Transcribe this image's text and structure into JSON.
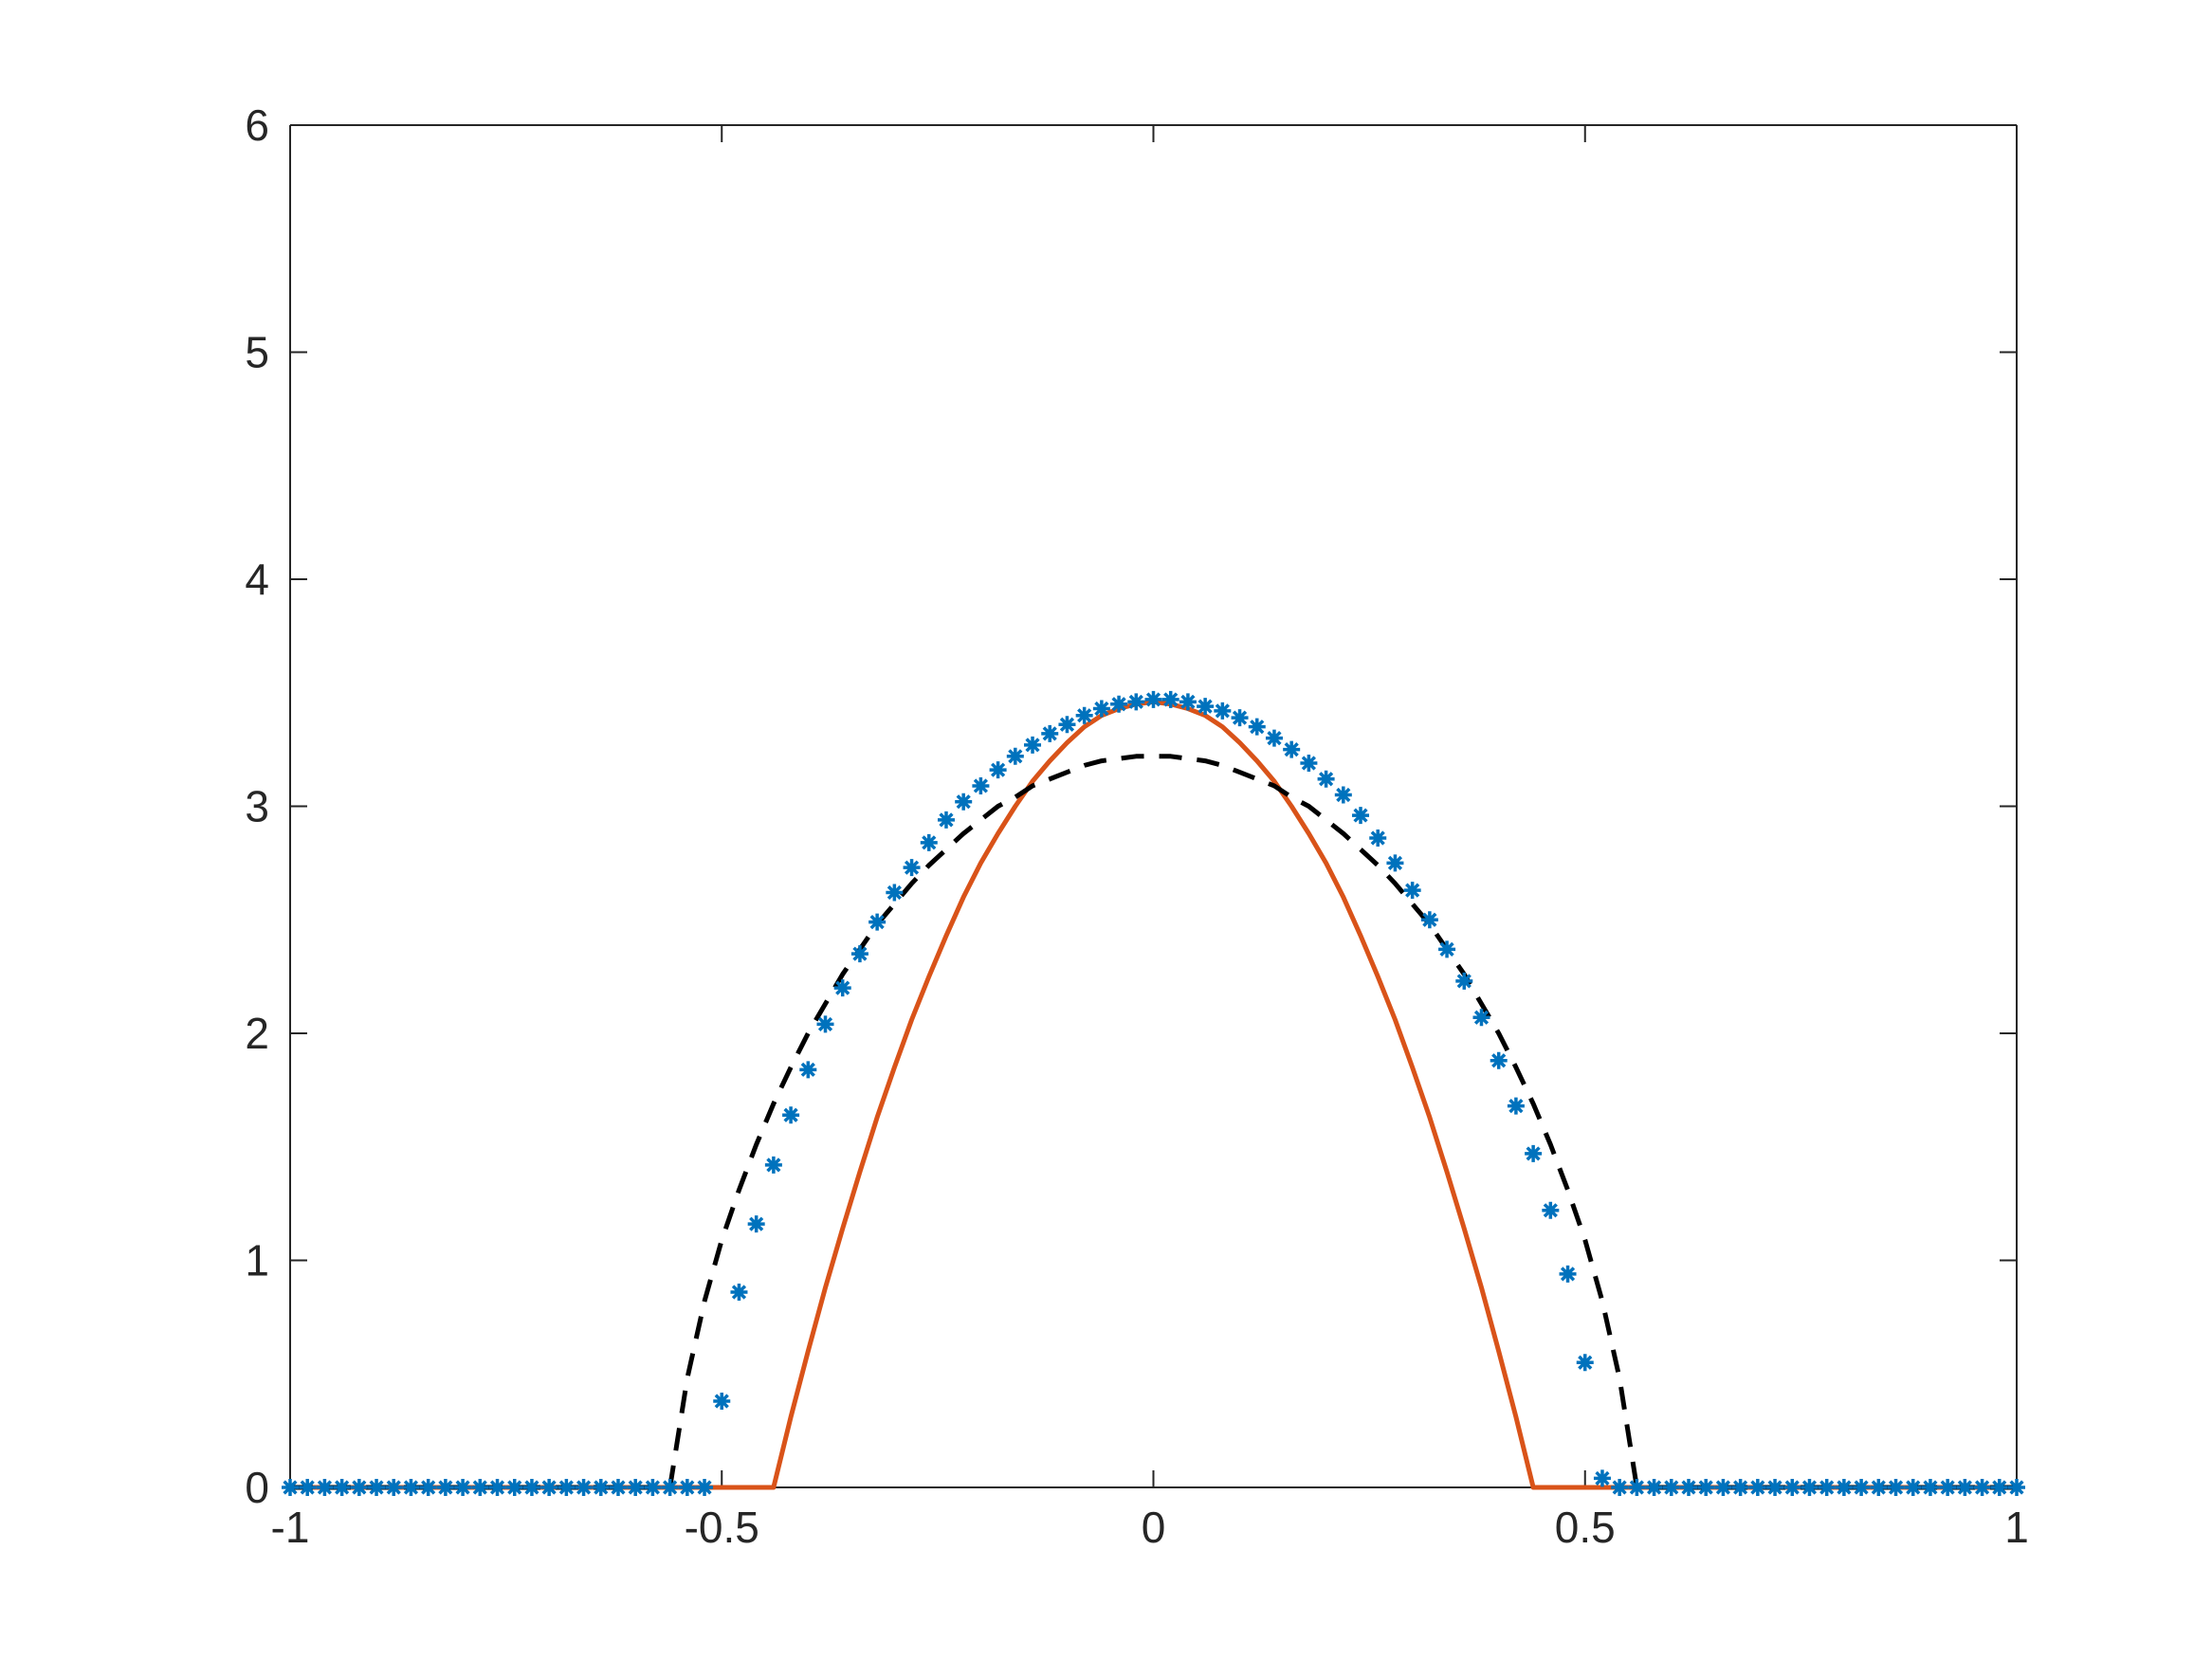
{
  "chart_data": {
    "type": "line",
    "x": [
      -1,
      -0.98,
      -0.96,
      -0.94,
      -0.92,
      -0.9,
      -0.88,
      -0.86,
      -0.84,
      -0.82,
      -0.8,
      -0.78,
      -0.76,
      -0.74,
      -0.72,
      -0.7,
      -0.68,
      -0.66,
      -0.64,
      -0.62,
      -0.6,
      -0.58,
      -0.56,
      -0.54,
      -0.52,
      -0.5,
      -0.48,
      -0.46,
      -0.44,
      -0.42,
      -0.4,
      -0.38,
      -0.36,
      -0.34,
      -0.32,
      -0.3,
      -0.28,
      -0.26,
      -0.24,
      -0.22,
      -0.2,
      -0.18,
      -0.16,
      -0.14,
      -0.12,
      -0.1,
      -0.08,
      -0.06,
      -0.04,
      -0.02,
      0,
      0.02,
      0.04,
      0.06,
      0.08,
      0.1,
      0.12,
      0.14,
      0.16,
      0.18,
      0.2,
      0.22,
      0.24,
      0.26,
      0.28,
      0.3,
      0.32,
      0.34,
      0.36,
      0.38,
      0.4,
      0.42,
      0.44,
      0.46,
      0.48,
      0.5,
      0.52,
      0.54,
      0.56,
      0.58,
      0.6,
      0.62,
      0.64,
      0.66,
      0.68,
      0.7,
      0.72,
      0.74,
      0.76,
      0.78,
      0.8,
      0.82,
      0.84,
      0.86,
      0.88,
      0.9,
      0.92,
      0.94,
      0.96,
      0.98,
      1
    ],
    "series": [
      {
        "color": "#D95319",
        "linestyle": "solid",
        "values": [
          0,
          0,
          0,
          0,
          0,
          0,
          0,
          0,
          0,
          0,
          0,
          0,
          0,
          0,
          0,
          0,
          0,
          0,
          0,
          0,
          0,
          0,
          0,
          0,
          0,
          0,
          0,
          0,
          0,
          0.31,
          0.6,
          0.88,
          1.14,
          1.39,
          1.63,
          1.85,
          2.06,
          2.25,
          2.43,
          2.6,
          2.75,
          2.88,
          3.0,
          3.11,
          3.2,
          3.28,
          3.35,
          3.4,
          3.43,
          3.45,
          3.46,
          3.45,
          3.43,
          3.4,
          3.35,
          3.28,
          3.2,
          3.11,
          3.0,
          2.88,
          2.75,
          2.6,
          2.43,
          2.25,
          2.06,
          1.85,
          1.63,
          1.39,
          1.14,
          0.88,
          0.6,
          0.31,
          0,
          0,
          0,
          0,
          0,
          0,
          0,
          0,
          0,
          0,
          0,
          0,
          0,
          0,
          0,
          0,
          0,
          0,
          0,
          0,
          0,
          0,
          0,
          0,
          0,
          0,
          0,
          0,
          0
        ]
      },
      {
        "color": "#000000",
        "linestyle": "dashed",
        "values": [
          0,
          0,
          0,
          0,
          0,
          0,
          0,
          0,
          0,
          0,
          0,
          0,
          0,
          0,
          0,
          0,
          0,
          0,
          0,
          0,
          0,
          0,
          0,
          0.48,
          0.82,
          1.09,
          1.31,
          1.51,
          1.69,
          1.85,
          2.0,
          2.13,
          2.26,
          2.37,
          2.48,
          2.57,
          2.66,
          2.74,
          2.81,
          2.88,
          2.94,
          3.0,
          3.04,
          3.09,
          3.12,
          3.15,
          3.18,
          3.2,
          3.21,
          3.22,
          3.22,
          3.22,
          3.21,
          3.2,
          3.18,
          3.15,
          3.12,
          3.09,
          3.04,
          3.0,
          2.94,
          2.88,
          2.81,
          2.74,
          2.66,
          2.57,
          2.48,
          2.37,
          2.26,
          2.13,
          2.0,
          1.85,
          1.69,
          1.51,
          1.31,
          1.09,
          0.82,
          0.48,
          0,
          0,
          0,
          0,
          0,
          0,
          0,
          0,
          0,
          0,
          0,
          0,
          0,
          0,
          0,
          0,
          0,
          0,
          0,
          0,
          0,
          0,
          0
        ]
      },
      {
        "color": "#0072BD",
        "linestyle": "none",
        "marker": "*",
        "values": [
          0,
          0,
          0,
          0,
          0,
          0,
          0,
          0,
          0,
          0,
          0,
          0,
          0,
          0,
          0,
          0,
          0,
          0,
          0,
          0,
          0,
          0,
          0,
          0,
          0,
          0.38,
          0.86,
          1.16,
          1.42,
          1.64,
          1.84,
          2.04,
          2.2,
          2.35,
          2.49,
          2.62,
          2.73,
          2.84,
          2.94,
          3.02,
          3.09,
          3.16,
          3.22,
          3.27,
          3.32,
          3.36,
          3.4,
          3.43,
          3.45,
          3.46,
          3.47,
          3.47,
          3.46,
          3.44,
          3.42,
          3.39,
          3.35,
          3.3,
          3.25,
          3.19,
          3.12,
          3.05,
          2.96,
          2.86,
          2.75,
          2.63,
          2.5,
          2.37,
          2.23,
          2.07,
          1.88,
          1.68,
          1.47,
          1.22,
          0.94,
          0.55,
          0.04,
          0,
          0,
          0,
          0,
          0,
          0,
          0,
          0,
          0,
          0,
          0,
          0,
          0,
          0,
          0,
          0,
          0,
          0,
          0,
          0,
          0,
          0,
          0,
          0
        ]
      }
    ],
    "xlim": [
      -1,
      1
    ],
    "ylim": [
      0,
      6
    ],
    "xticks": [
      -1,
      -0.5,
      0,
      0.5,
      1
    ],
    "yticks": [
      0,
      1,
      2,
      3,
      4,
      5,
      6
    ],
    "box": true,
    "grid": false
  }
}
